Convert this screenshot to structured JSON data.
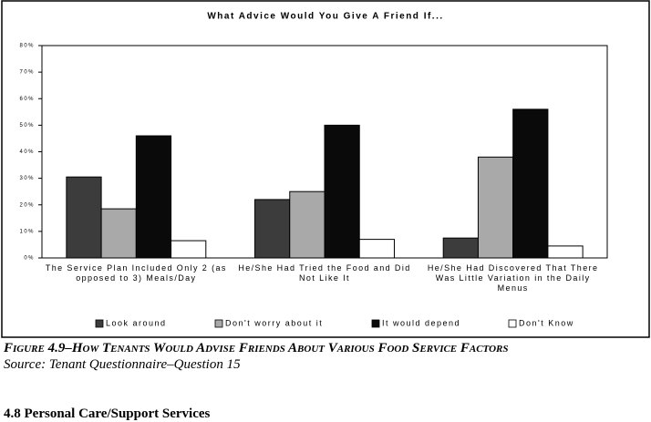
{
  "chart_data": {
    "type": "bar",
    "title": "What Advice Would You Give A Friend If...",
    "categories": [
      "The Service Plan Included Only 2 (as opposed to 3) Meals/Day",
      "He/She Had Tried the Food and Did Not Like It",
      "He/She Had Discovered That There Was Little Variation in the Daily Menus"
    ],
    "series": [
      {
        "name": "Look around",
        "color": "#3c3c3c",
        "values": [
          30.5,
          22,
          7.5
        ]
      },
      {
        "name": "Don't worry about it",
        "color": "#a9a9a9",
        "values": [
          18.5,
          25,
          38
        ]
      },
      {
        "name": "It would depend",
        "color": "#0a0a0a",
        "values": [
          46,
          50,
          56
        ]
      },
      {
        "name": "Don't Know",
        "color": "#ffffff",
        "values": [
          6.5,
          7,
          4.5
        ]
      }
    ],
    "ylim": [
      0,
      80
    ],
    "yticks": [
      {
        "value": 0,
        "label": "0%"
      },
      {
        "value": 10,
        "label": "10%"
      },
      {
        "value": 20,
        "label": "20%"
      },
      {
        "value": 30,
        "label": "30%"
      },
      {
        "value": 40,
        "label": "40%"
      },
      {
        "value": 50,
        "label": "50%"
      },
      {
        "value": 60,
        "label": "60%"
      },
      {
        "value": 70,
        "label": "70%"
      },
      {
        "value": 80,
        "label": "80%"
      }
    ],
    "grid": false,
    "legend": "bottom"
  },
  "caption": "Figure 4.9–How Tenants Would Advise Friends About Various Food Service Factors",
  "source": "Source:  Tenant Questionnaire–Question 15",
  "next_heading": "4.8     Personal Care/Support Services"
}
